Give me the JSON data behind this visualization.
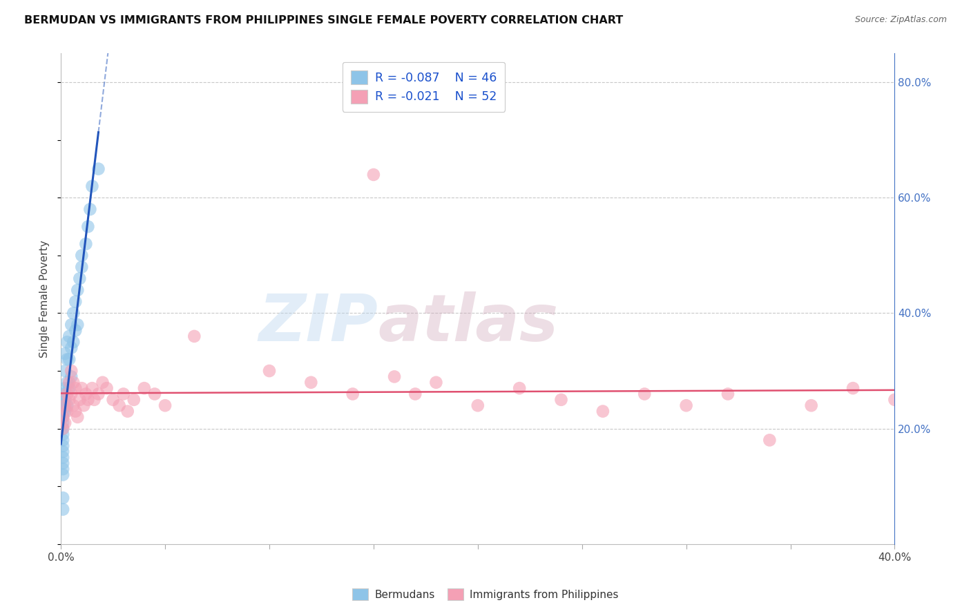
{
  "title": "BERMUDAN VS IMMIGRANTS FROM PHILIPPINES SINGLE FEMALE POVERTY CORRELATION CHART",
  "source": "Source: ZipAtlas.com",
  "ylabel": "Single Female Poverty",
  "xlim": [
    0.0,
    0.4
  ],
  "ylim": [
    0.0,
    0.85
  ],
  "bermuda_R": -0.087,
  "bermuda_N": 46,
  "phil_R": -0.021,
  "phil_N": 52,
  "bermuda_color": "#8ec4e8",
  "phil_color": "#f4a0b5",
  "trendline_bermuda_color": "#2255bb",
  "trendline_phil_color": "#e05070",
  "background_color": "#ffffff",
  "grid_color": "#c8c8c8",
  "bermuda_x": [
    0.001,
    0.001,
    0.001,
    0.001,
    0.001,
    0.001,
    0.001,
    0.001,
    0.001,
    0.001,
    0.001,
    0.001,
    0.001,
    0.001,
    0.001,
    0.002,
    0.002,
    0.002,
    0.002,
    0.002,
    0.003,
    0.003,
    0.003,
    0.003,
    0.004,
    0.004,
    0.004,
    0.005,
    0.005,
    0.005,
    0.006,
    0.006,
    0.007,
    0.007,
    0.008,
    0.008,
    0.009,
    0.01,
    0.01,
    0.012,
    0.013,
    0.014,
    0.015,
    0.018,
    0.001,
    0.001
  ],
  "bermuda_y": [
    0.26,
    0.25,
    0.24,
    0.23,
    0.22,
    0.21,
    0.2,
    0.19,
    0.18,
    0.17,
    0.16,
    0.15,
    0.14,
    0.13,
    0.12,
    0.33,
    0.3,
    0.27,
    0.25,
    0.23,
    0.35,
    0.32,
    0.28,
    0.24,
    0.36,
    0.32,
    0.27,
    0.38,
    0.34,
    0.29,
    0.4,
    0.35,
    0.42,
    0.37,
    0.44,
    0.38,
    0.46,
    0.48,
    0.5,
    0.52,
    0.55,
    0.58,
    0.62,
    0.65,
    0.08,
    0.06
  ],
  "phil_x": [
    0.001,
    0.001,
    0.002,
    0.002,
    0.003,
    0.003,
    0.004,
    0.004,
    0.005,
    0.005,
    0.006,
    0.006,
    0.007,
    0.007,
    0.008,
    0.009,
    0.01,
    0.011,
    0.012,
    0.013,
    0.015,
    0.016,
    0.018,
    0.02,
    0.022,
    0.025,
    0.028,
    0.03,
    0.032,
    0.035,
    0.04,
    0.045,
    0.05,
    0.1,
    0.12,
    0.14,
    0.15,
    0.16,
    0.17,
    0.18,
    0.2,
    0.22,
    0.24,
    0.26,
    0.28,
    0.3,
    0.32,
    0.34,
    0.36,
    0.38,
    0.4,
    0.064
  ],
  "phil_y": [
    0.22,
    0.2,
    0.24,
    0.21,
    0.26,
    0.23,
    0.28,
    0.25,
    0.3,
    0.26,
    0.28,
    0.24,
    0.27,
    0.23,
    0.22,
    0.25,
    0.27,
    0.24,
    0.26,
    0.25,
    0.27,
    0.25,
    0.26,
    0.28,
    0.27,
    0.25,
    0.24,
    0.26,
    0.23,
    0.25,
    0.27,
    0.26,
    0.24,
    0.3,
    0.28,
    0.26,
    0.64,
    0.29,
    0.26,
    0.28,
    0.24,
    0.27,
    0.25,
    0.23,
    0.26,
    0.24,
    0.26,
    0.18,
    0.24,
    0.27,
    0.25,
    0.36
  ]
}
